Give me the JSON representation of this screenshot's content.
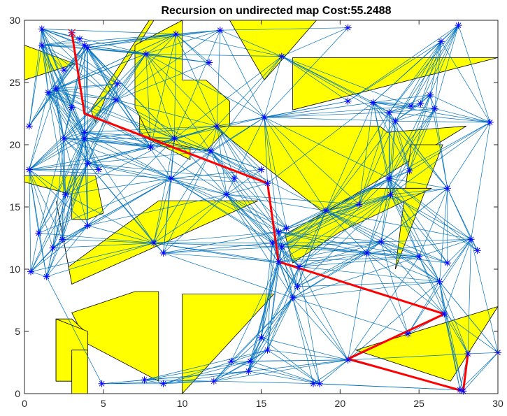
{
  "chart_data": {
    "type": "scatter",
    "title": "Recursion on undirected map  Cost:55.2488",
    "xlim": [
      0,
      30
    ],
    "ylim": [
      0,
      30
    ],
    "xticks": [
      0,
      5,
      10,
      15,
      20,
      25,
      30
    ],
    "yticks": [
      0,
      5,
      10,
      15,
      20,
      25,
      30
    ],
    "grid": false,
    "colors": {
      "obstacle": "#ffff00",
      "edge": "#0072bd",
      "node": "#0000ff",
      "path": "#ff0000"
    },
    "obstacles": [
      [
        [
          0,
          28
        ],
        [
          3.2,
          26.5
        ],
        [
          0,
          25.2
        ]
      ],
      [
        [
          4.2,
          22.8
        ],
        [
          7.9,
          30
        ],
        [
          8.2,
          30
        ],
        [
          5.2,
          24
        ],
        [
          4.5,
          21.8
        ]
      ],
      [
        [
          7.3,
          26
        ],
        [
          7.3,
          20.8
        ],
        [
          10.5,
          18.8
        ],
        [
          10.5,
          19.8
        ]
      ],
      [
        [
          7,
          28
        ],
        [
          10,
          30
        ],
        [
          10,
          25.2
        ],
        [
          11.5,
          25.2
        ],
        [
          13,
          23.5
        ],
        [
          13,
          21.5
        ],
        [
          11.5,
          19.5
        ],
        [
          8,
          20.5
        ],
        [
          7,
          23
        ]
      ],
      [
        [
          13,
          30
        ],
        [
          18.5,
          30
        ],
        [
          15.2,
          25.2
        ]
      ],
      [
        [
          17,
          27
        ],
        [
          30,
          27
        ],
        [
          17,
          22.8
        ]
      ],
      [
        [
          0,
          17.5
        ],
        [
          4.5,
          17.5
        ],
        [
          5,
          14.5
        ],
        [
          4,
          14
        ],
        [
          3,
          14
        ],
        [
          3,
          16
        ],
        [
          0,
          17
        ]
      ],
      [
        [
          12,
          21.5
        ],
        [
          22.5,
          21.5
        ],
        [
          23,
          21
        ],
        [
          28,
          21.5
        ],
        [
          19,
          14.5
        ]
      ],
      [
        [
          24.5,
          20
        ],
        [
          26.5,
          20
        ],
        [
          23.5,
          10
        ]
      ],
      [
        [
          2,
          15.5
        ],
        [
          3,
          8.8
        ],
        [
          14.8,
          15.5
        ],
        [
          8.5,
          15.5
        ],
        [
          2.8,
          10.2
        ]
      ],
      [
        [
          16.5,
          12.8
        ],
        [
          21.8,
          16.5
        ],
        [
          25.8,
          16.5
        ],
        [
          20,
          13
        ],
        [
          17,
          10.5
        ]
      ],
      [
        [
          10,
          8
        ],
        [
          15.8,
          8
        ],
        [
          10,
          0
        ]
      ],
      [
        [
          7,
          8.2
        ],
        [
          8.5,
          8.2
        ],
        [
          8.5,
          1
        ],
        [
          4,
          4
        ],
        [
          3,
          6.5
        ]
      ],
      [
        [
          2,
          6
        ],
        [
          3,
          6
        ],
        [
          4,
          4.8
        ],
        [
          3,
          3
        ],
        [
          2,
          3
        ],
        [
          2,
          1
        ]
      ],
      [
        [
          2,
          6
        ],
        [
          2,
          1
        ],
        [
          3,
          1
        ],
        [
          3,
          3
        ],
        [
          4,
          3
        ],
        [
          4,
          5
        ]
      ],
      [
        [
          3,
          0
        ],
        [
          4,
          0
        ],
        [
          4,
          3.5
        ],
        [
          3,
          3.5
        ]
      ],
      [
        [
          21,
          3.5
        ],
        [
          30,
          7
        ],
        [
          27,
          1
        ]
      ]
    ],
    "nodes": [
      [
        3,
        29
      ],
      [
        1.1,
        29.3
      ],
      [
        1.1,
        28
      ],
      [
        3.5,
        28.5
      ],
      [
        3.8,
        28
      ],
      [
        4,
        27.8
      ],
      [
        2.5,
        26
      ],
      [
        2,
        24.5
      ],
      [
        1.5,
        24.2
      ],
      [
        0.3,
        21.5
      ],
      [
        2.5,
        20.5
      ],
      [
        3.8,
        21
      ],
      [
        3,
        23
      ],
      [
        0.3,
        18
      ],
      [
        4,
        18.5
      ],
      [
        4.7,
        18
      ],
      [
        3.8,
        20.5
      ],
      [
        5.8,
        23.6
      ],
      [
        5.9,
        24.9
      ],
      [
        7.7,
        27.3
      ],
      [
        9.6,
        28.9
      ],
      [
        11.7,
        26.6
      ],
      [
        12.4,
        29.2
      ],
      [
        12.2,
        21.5
      ],
      [
        13.3,
        17.3
      ],
      [
        12.8,
        16
      ],
      [
        9.5,
        20.5
      ],
      [
        8,
        19.8
      ],
      [
        9.3,
        17.3
      ],
      [
        11.8,
        19.5
      ],
      [
        15,
        18
      ],
      [
        16.3,
        27.1
      ],
      [
        15.2,
        22.2
      ],
      [
        20.5,
        29.4
      ],
      [
        26.4,
        28.3
      ],
      [
        27.5,
        29.6
      ],
      [
        20.5,
        23.5
      ],
      [
        22.1,
        23.4
      ],
      [
        23.1,
        22.6
      ],
      [
        24.5,
        23.1
      ],
      [
        23.5,
        21.9
      ],
      [
        25.7,
        24
      ],
      [
        25.1,
        23.3
      ],
      [
        26,
        22.9
      ],
      [
        29.5,
        21.8
      ],
      [
        15.4,
        16.9
      ],
      [
        15.7,
        12.1
      ],
      [
        16.1,
        13
      ],
      [
        16.6,
        13.3
      ],
      [
        16.3,
        11.8
      ],
      [
        19.1,
        14.7
      ],
      [
        21.2,
        15.2
      ],
      [
        23.2,
        16
      ],
      [
        23.1,
        17.3
      ],
      [
        24.4,
        17.9
      ],
      [
        26.8,
        16.5
      ],
      [
        28.3,
        12.4
      ],
      [
        28.7,
        11.5
      ],
      [
        21.7,
        11.3
      ],
      [
        22.6,
        12.2
      ],
      [
        26.8,
        10.5
      ],
      [
        26.3,
        9
      ],
      [
        16.1,
        10.6
      ],
      [
        17.3,
        8.6
      ],
      [
        17,
        7.7
      ],
      [
        26.6,
        6.4
      ],
      [
        24.3,
        4.8
      ],
      [
        30,
        3.3
      ],
      [
        28.1,
        3.2
      ],
      [
        27.8,
        0.2
      ],
      [
        27.6,
        0.3
      ],
      [
        20.5,
        2.7
      ],
      [
        18.3,
        0.8
      ],
      [
        18.7,
        0.8
      ],
      [
        12,
        1
      ],
      [
        13.1,
        2.6
      ],
      [
        14.3,
        2.6
      ],
      [
        14.2,
        1.8
      ],
      [
        15,
        4.5
      ],
      [
        15.4,
        3.5
      ],
      [
        8.2,
        12.1
      ],
      [
        8.8,
        11.3
      ],
      [
        8.8,
        0.8
      ],
      [
        4.9,
        0.8
      ],
      [
        7.6,
        1.1
      ],
      [
        0.4,
        9.8
      ],
      [
        1.4,
        9.4
      ],
      [
        0.9,
        12.9
      ],
      [
        1.8,
        11.7
      ],
      [
        2.4,
        12.4
      ],
      [
        2.6,
        16
      ],
      [
        4,
        13.5
      ],
      [
        17.4,
        10.2
      ],
      [
        25,
        11
      ]
    ],
    "path": [
      [
        3,
        29
      ],
      [
        3.8,
        22.5
      ],
      [
        15.4,
        16.9
      ],
      [
        16.1,
        10.6
      ],
      [
        26.6,
        6.4
      ],
      [
        20.5,
        2.8
      ],
      [
        27.8,
        0.2
      ],
      [
        28.1,
        3.2
      ]
    ]
  }
}
